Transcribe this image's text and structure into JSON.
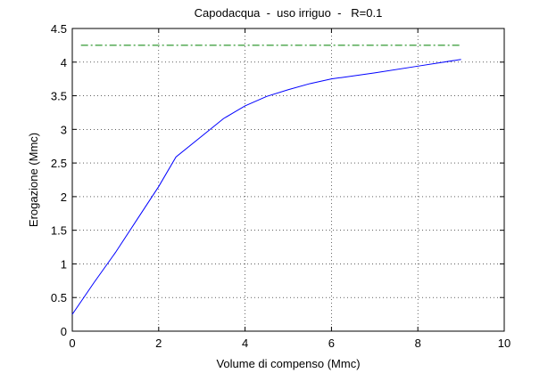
{
  "chart_data": {
    "type": "line",
    "title": "Capodacqua  -  uso irriguo  -   R=0.1",
    "xlabel": "Volume di compenso (Mmc)",
    "ylabel": "Erogazione (Mmc)",
    "series": [
      {
        "color": "#0000ff",
        "style": "solid",
        "x": [
          0,
          0.5,
          1,
          1.5,
          2,
          2.4,
          3,
          3.5,
          4,
          4.5,
          5,
          5.5,
          6,
          7,
          8,
          9
        ],
        "values": [
          0.25,
          0.72,
          1.17,
          1.66,
          2.15,
          2.59,
          2.9,
          3.16,
          3.35,
          3.49,
          3.59,
          3.68,
          3.75,
          3.84,
          3.94,
          4.04
        ]
      },
      {
        "color": "#008000",
        "style": "dashdot",
        "x": [
          0.2,
          9
        ],
        "values": [
          4.25,
          4.25
        ]
      }
    ],
    "xlim": [
      0,
      10
    ],
    "xticks": [
      0,
      2,
      4,
      6,
      8,
      10
    ],
    "ylim": [
      0,
      4.5
    ],
    "yticks": [
      0,
      0.5,
      1,
      1.5,
      2,
      2.5,
      3,
      3.5,
      4,
      4.5
    ],
    "grid": true
  }
}
